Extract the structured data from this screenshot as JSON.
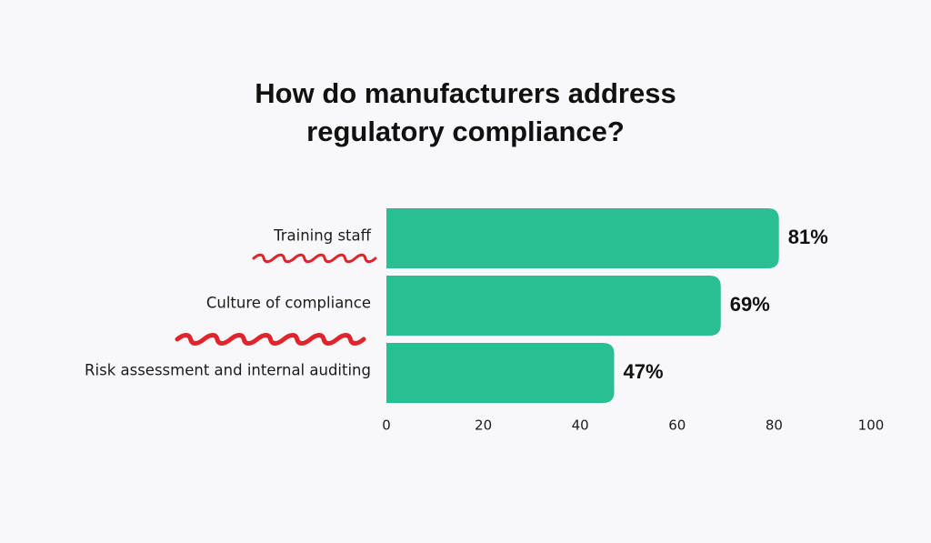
{
  "chart_data": {
    "type": "bar",
    "orientation": "horizontal",
    "title_lines": [
      "How do manufacturers address",
      "regulatory compliance?"
    ],
    "categories": [
      "Training staff",
      "Culture of compliance",
      "Risk assessment and internal auditing"
    ],
    "values": [
      81,
      69,
      47
    ],
    "value_labels": [
      "81%",
      "69%",
      "47%"
    ],
    "xlim": [
      0,
      100
    ],
    "xticks": [
      0,
      20,
      40,
      60,
      80,
      100
    ],
    "xticklabels": [
      "0",
      "20",
      "40",
      "60",
      "80",
      "100"
    ],
    "grid": false,
    "colors": {
      "bar": "#2abf93",
      "squiggle": "#e0242b",
      "background": "#f8f8fa"
    }
  }
}
